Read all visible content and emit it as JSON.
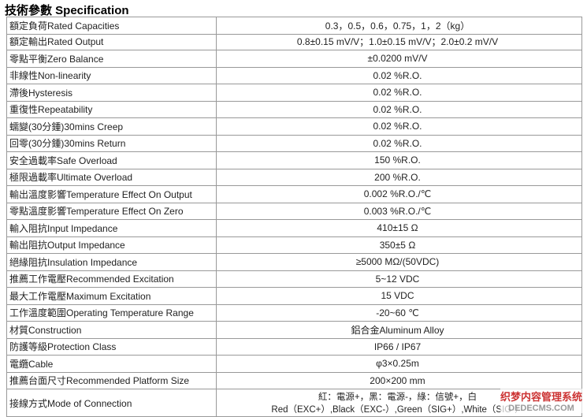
{
  "header": {
    "title": "技術參數 Specification"
  },
  "table": {
    "rows": [
      [
        "額定負荷Rated Capacities",
        "0.3，0.5，0.6，0.75，1，2（kg）"
      ],
      [
        "額定輸出Rated Output",
        "0.8±0.15 mV/V；1.0±0.15 mV/V；2.0±0.2 mV/V"
      ],
      [
        "零點平衡Zero Balance",
        "±0.0200 mV/V"
      ],
      [
        "非線性Non-linearity",
        "0.02 %R.O."
      ],
      [
        "滯後Hysteresis",
        "0.02 %R.O."
      ],
      [
        "重復性Repeatability",
        "0.02 %R.O."
      ],
      [
        "蠕變(30分鍾)30mins Creep",
        "0.02 %R.O."
      ],
      [
        "回零(30分鍾)30mins Return",
        "0.02 %R.O."
      ],
      [
        "安全過載率Safe Overload",
        "150 %R.O."
      ],
      [
        "極限過載率Ultimate Overload",
        "200 %R.O."
      ],
      [
        "輸出溫度影響Temperature Effect On Output",
        "0.002 %R.O./℃"
      ],
      [
        "零點溫度影響Temperature Effect On Zero",
        "0.003 %R.O./℃"
      ],
      [
        "輸入阻抗Input Impedance",
        "410±15 Ω"
      ],
      [
        "輸出阻抗Output Impedance",
        "350±5 Ω"
      ],
      [
        "絕緣阻抗Insulation Impedance",
        "≥5000 MΩ/(50VDC)"
      ],
      [
        "推薦工作電壓Recommended Excitation",
        "5~12 VDC"
      ],
      [
        "最大工作電壓Maximum Excitation",
        "15 VDC"
      ],
      [
        "工作溫度範圍Operating Temperature Range",
        "-20~60 ℃"
      ],
      [
        "材質Construction",
        "鋁合金Aluminum Alloy"
      ],
      [
        "防護等級Protection Class",
        "IP66 / IP67"
      ],
      [
        "電纜Cable",
        "φ3×0.25m"
      ],
      [
        "推薦台面尺寸Recommended Platform Size",
        "200×200 mm"
      ]
    ],
    "last_row": {
      "label": "接線方式Mode of Connection",
      "line1": "紅：電源+，黑：電源-，綠：信號+，白",
      "line2": "Red（EXC+）,Black（EXC-）,Green（SIG+）,White（SIG-）"
    }
  },
  "watermark": {
    "line1": "织梦内容管理系统",
    "line2": "DEDECMS.COM"
  }
}
